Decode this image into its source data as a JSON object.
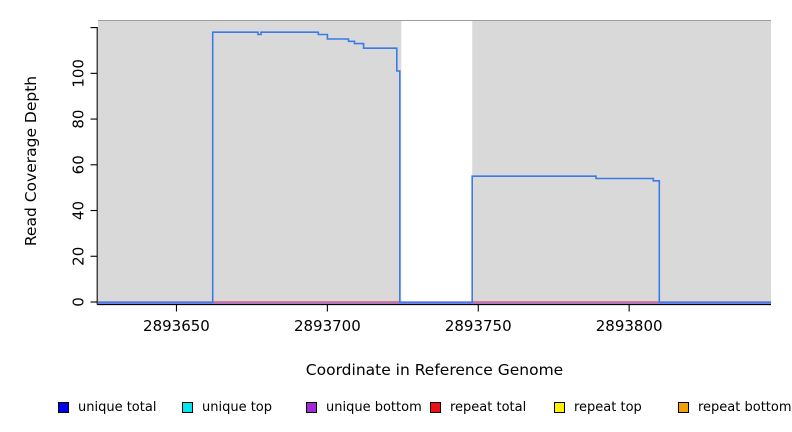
{
  "chart_data": {
    "type": "line",
    "subtype": "step-coverage-plot",
    "title": "",
    "xlabel": "Coordinate in Reference Genome",
    "ylabel": "Read Coverage Depth",
    "xlim": [
      2893624,
      2893847
    ],
    "ylim": [
      0,
      123
    ],
    "grid": false,
    "x_ticks": [
      2893650,
      2893700,
      2893750,
      2893800
    ],
    "x_tick_labels": [
      "2893650",
      "2893700",
      "2893750",
      "2893800"
    ],
    "y_ticks": [
      0,
      20,
      40,
      60,
      80,
      100,
      120
    ],
    "y_tick_labels": [
      "0",
      "20",
      "40",
      "60",
      "80",
      "100",
      ""
    ],
    "axis_color": "#000000",
    "plot_border_color": "#9e9e9e",
    "plot_background_regions": [
      {
        "name": "shaded-region-left",
        "x0": 2893624,
        "x1": 2893724.5,
        "fill": "#d9d9d9"
      },
      {
        "name": "shaded-region-right",
        "x0": 2893748,
        "x1": 2893847,
        "fill": "#d9d9d9"
      }
    ],
    "series": [
      {
        "name": "unique bottom",
        "color": "#8585e6",
        "points": [
          [
            2893624,
            0
          ],
          [
            2893847,
            0
          ]
        ],
        "note": "flat baseline at depth 0 across full range"
      },
      {
        "name": "repeat total",
        "color": "#e63a5a",
        "points": [
          [
            2893624,
            0
          ],
          [
            2893847,
            0
          ]
        ],
        "note": "flat baseline at depth 0 across full range"
      },
      {
        "name": "unique total",
        "color": "#3c7ae8",
        "points": [
          [
            2893624,
            0
          ],
          [
            2893662,
            0
          ],
          [
            2893662,
            118
          ],
          [
            2893677,
            118
          ],
          [
            2893677,
            117
          ],
          [
            2893678,
            117
          ],
          [
            2893678,
            118
          ],
          [
            2893697,
            118
          ],
          [
            2893697,
            117
          ],
          [
            2893700,
            117
          ],
          [
            2893700,
            115
          ],
          [
            2893707,
            115
          ],
          [
            2893707,
            114
          ],
          [
            2893709,
            114
          ],
          [
            2893709,
            113
          ],
          [
            2893712,
            113
          ],
          [
            2893712,
            111
          ],
          [
            2893723,
            111
          ],
          [
            2893723,
            101
          ],
          [
            2893724,
            101
          ],
          [
            2893724,
            0
          ],
          [
            2893748,
            0
          ],
          [
            2893748,
            55
          ],
          [
            2893789,
            55
          ],
          [
            2893789,
            54
          ],
          [
            2893808,
            54
          ],
          [
            2893808,
            53
          ],
          [
            2893810,
            53
          ],
          [
            2893810,
            0
          ],
          [
            2893847,
            0
          ]
        ]
      }
    ],
    "legend_position": "bottom",
    "legend": [
      {
        "label": "unique total",
        "color": "#0000ee"
      },
      {
        "label": "unique top",
        "color": "#00e6f0"
      },
      {
        "label": "unique bottom",
        "color": "#a428d4"
      },
      {
        "label": "repeat total",
        "color": "#ee1111"
      },
      {
        "label": "repeat top",
        "color": "#fff200"
      },
      {
        "label": "repeat bottom",
        "color": "#f2a100"
      }
    ]
  }
}
